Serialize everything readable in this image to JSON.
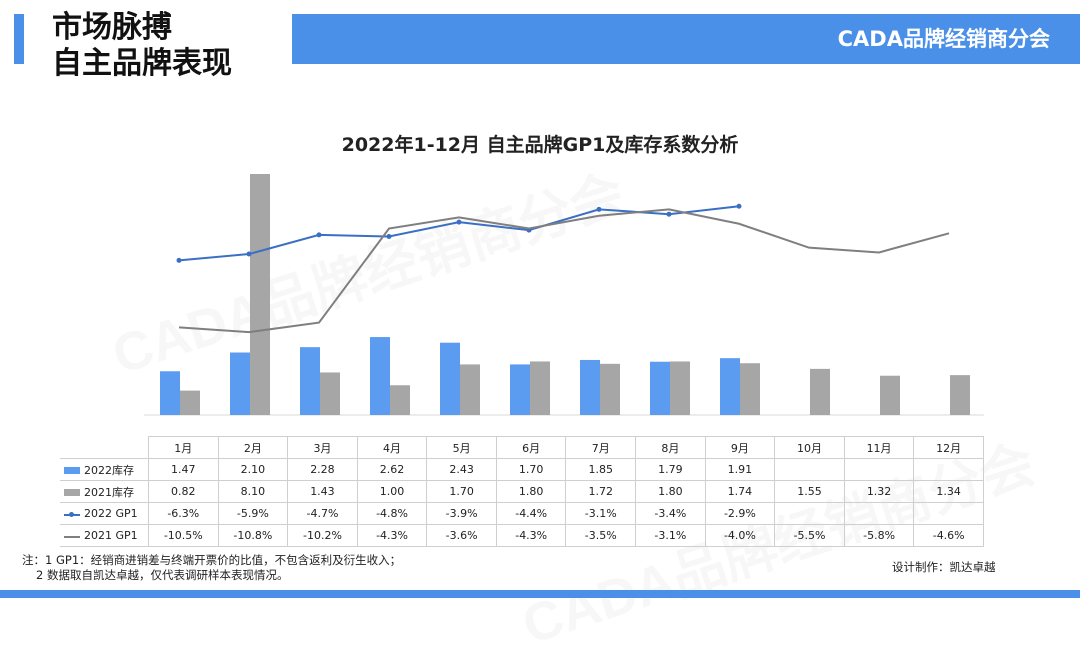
{
  "header": {
    "title_line1": "市场脉搏",
    "title_line2": "自主品牌表现",
    "brand": "CADA品牌经销商分会"
  },
  "watermark_text": "CADA品牌经销商分会",
  "colors": {
    "accent": "#4a8fe8",
    "inventory_2022": "#5b9bf0",
    "inventory_2021": "#a6a6a6",
    "gp1_2022": "#3a6fc4",
    "gp1_2021": "#7f7f7f"
  },
  "chart_data": {
    "type": "bar",
    "title": "2022年1-12月 自主品牌GP1及库存系数分析",
    "categories": [
      "1月",
      "2月",
      "3月",
      "4月",
      "5月",
      "6月",
      "7月",
      "8月",
      "9月",
      "10月",
      "11月",
      "12月"
    ],
    "series": [
      {
        "name": "2022库存",
        "type": "bar",
        "values": [
          1.47,
          2.1,
          2.28,
          2.62,
          2.43,
          1.7,
          1.85,
          1.79,
          1.91,
          null,
          null,
          null
        ],
        "labels": [
          "1.47",
          "2.10",
          "2.28",
          "2.62",
          "2.43",
          "1.70",
          "1.85",
          "1.79",
          "1.91",
          "",
          "",
          ""
        ]
      },
      {
        "name": "2021库存",
        "type": "bar",
        "values": [
          0.82,
          8.1,
          1.43,
          1.0,
          1.7,
          1.8,
          1.72,
          1.8,
          1.74,
          1.55,
          1.32,
          1.34
        ],
        "labels": [
          "0.82",
          "8.10",
          "1.43",
          "1.00",
          "1.70",
          "1.80",
          "1.72",
          "1.80",
          "1.74",
          "1.55",
          "1.32",
          "1.34"
        ]
      },
      {
        "name": "2022 GP1",
        "type": "line",
        "values": [
          -6.3,
          -5.9,
          -4.7,
          -4.8,
          -3.9,
          -4.4,
          -3.1,
          -3.4,
          -2.9,
          null,
          null,
          null
        ],
        "labels": [
          "-6.3%",
          "-5.9%",
          "-4.7%",
          "-4.8%",
          "-3.9%",
          "-4.4%",
          "-3.1%",
          "-3.4%",
          "-2.9%",
          "",
          "",
          ""
        ]
      },
      {
        "name": "2021 GP1",
        "type": "line",
        "values": [
          -10.5,
          -10.8,
          -10.2,
          -4.3,
          -3.6,
          -4.3,
          -3.5,
          -3.1,
          -4.0,
          -5.5,
          -5.8,
          -4.6
        ],
        "labels": [
          "-10.5%",
          "-10.8%",
          "-10.2%",
          "-4.3%",
          "-3.6%",
          "-4.3%",
          "-3.5%",
          "-3.1%",
          "-4.0%",
          "-5.5%",
          "-5.8%",
          "-4.6%"
        ]
      }
    ],
    "bar_axis_range": [
      0,
      8.1
    ],
    "line_axis_range": [
      -16,
      0
    ],
    "grid": false,
    "legend": "table-left"
  },
  "footnote": {
    "line1": "注：1 GP1：经销商进销差与终端开票价的比值，不包含返利及衍生收入；",
    "line2": "2 数据取自凯达卓越，仅代表调研样本表现情况。"
  },
  "designer": "设计制作：凯达卓越"
}
